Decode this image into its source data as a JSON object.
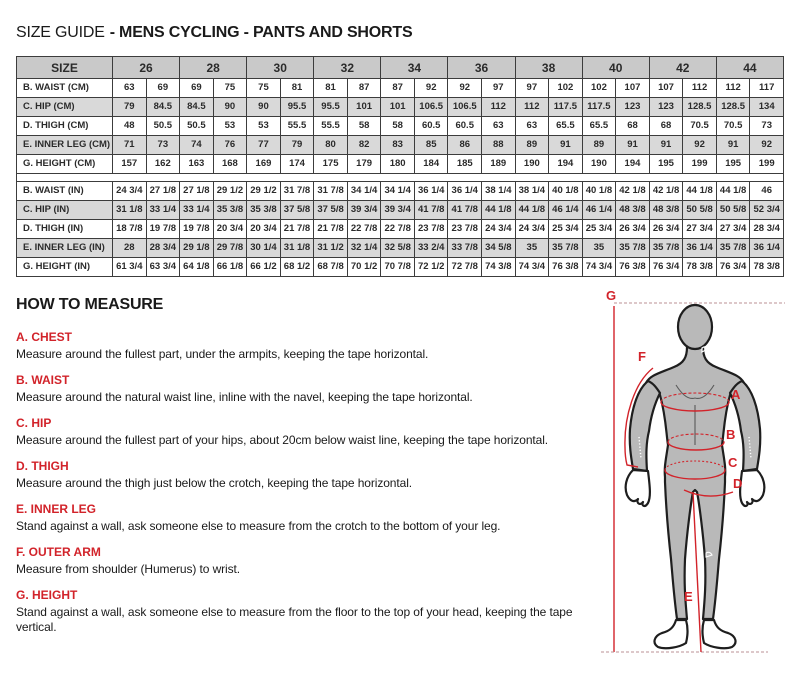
{
  "page": {
    "title_prefix": "SIZE GUIDE",
    "title_rest": "- MENS CYCLING - PANTS AND SHORTS"
  },
  "size_table": {
    "corner_label": "SIZE",
    "sizes": [
      "26",
      "28",
      "30",
      "32",
      "34",
      "36",
      "38",
      "40",
      "42",
      "44"
    ],
    "rows_cm": [
      {
        "label": "B. WAIST (CM)",
        "values": [
          "63",
          "69",
          "69",
          "75",
          "75",
          "81",
          "81",
          "87",
          "87",
          "92",
          "92",
          "97",
          "97",
          "102",
          "102",
          "107",
          "107",
          "112",
          "112",
          "117"
        ]
      },
      {
        "label": "C. HIP (CM)",
        "values": [
          "79",
          "84.5",
          "84.5",
          "90",
          "90",
          "95.5",
          "95.5",
          "101",
          "101",
          "106.5",
          "106.5",
          "112",
          "112",
          "117.5",
          "117.5",
          "123",
          "123",
          "128.5",
          "128.5",
          "134"
        ]
      },
      {
        "label": "D. THIGH (CM)",
        "values": [
          "48",
          "50.5",
          "50.5",
          "53",
          "53",
          "55.5",
          "55.5",
          "58",
          "58",
          "60.5",
          "60.5",
          "63",
          "63",
          "65.5",
          "65.5",
          "68",
          "68",
          "70.5",
          "70.5",
          "73"
        ]
      },
      {
        "label": "E. INNER LEG (CM)",
        "values": [
          "71",
          "73",
          "74",
          "76",
          "77",
          "79",
          "80",
          "82",
          "83",
          "85",
          "86",
          "88",
          "89",
          "91",
          "89",
          "91",
          "91",
          "92",
          "91",
          "92"
        ]
      },
      {
        "label": "G. HEIGHT (CM)",
        "values": [
          "157",
          "162",
          "163",
          "168",
          "169",
          "174",
          "175",
          "179",
          "180",
          "184",
          "185",
          "189",
          "190",
          "194",
          "190",
          "194",
          "195",
          "199",
          "195",
          "199"
        ]
      }
    ],
    "rows_in": [
      {
        "label": "B. WAIST (IN)",
        "values": [
          "24 3/4",
          "27 1/8",
          "27 1/8",
          "29 1/2",
          "29 1/2",
          "31 7/8",
          "31 7/8",
          "34 1/4",
          "34 1/4",
          "36 1/4",
          "36 1/4",
          "38 1/4",
          "38 1/4",
          "40 1/8",
          "40 1/8",
          "42 1/8",
          "42 1/8",
          "44 1/8",
          "44 1/8",
          "46"
        ]
      },
      {
        "label": "C. HIP (IN)",
        "values": [
          "31 1/8",
          "33 1/4",
          "33 1/4",
          "35 3/8",
          "35 3/8",
          "37 5/8",
          "37 5/8",
          "39 3/4",
          "39 3/4",
          "41 7/8",
          "41 7/8",
          "44 1/8",
          "44 1/8",
          "46 1/4",
          "46 1/4",
          "48 3/8",
          "48 3/8",
          "50 5/8",
          "50 5/8",
          "52 3/4"
        ]
      },
      {
        "label": "D. THIGH (IN)",
        "values": [
          "18 7/8",
          "19 7/8",
          "19 7/8",
          "20 3/4",
          "20 3/4",
          "21 7/8",
          "21 7/8",
          "22 7/8",
          "22 7/8",
          "23 7/8",
          "23 7/8",
          "24 3/4",
          "24 3/4",
          "25 3/4",
          "25 3/4",
          "26 3/4",
          "26 3/4",
          "27 3/4",
          "27 3/4",
          "28 3/4"
        ]
      },
      {
        "label": "E. INNER LEG (IN)",
        "values": [
          "28",
          "28 3/4",
          "29 1/8",
          "29 7/8",
          "30 1/4",
          "31 1/8",
          "31 1/2",
          "32 1/4",
          "32 5/8",
          "33 2/4",
          "33 7/8",
          "34 5/8",
          "35",
          "35 7/8",
          "35",
          "35 7/8",
          "35 7/8",
          "36 1/4",
          "35 7/8",
          "36 1/4"
        ]
      },
      {
        "label": "G. HEIGHT (IN)",
        "values": [
          "61 3/4",
          "63 3/4",
          "64 1/8",
          "66 1/8",
          "66 1/2",
          "68 1/2",
          "68 7/8",
          "70 1/2",
          "70 7/8",
          "72 1/2",
          "72 7/8",
          "74 3/8",
          "74 3/4",
          "76 3/8",
          "74 3/4",
          "76 3/8",
          "76 3/4",
          "78 3/8",
          "76 3/4",
          "78 3/8"
        ]
      }
    ]
  },
  "how_to_measure": {
    "heading": "HOW TO MEASURE",
    "sections": [
      {
        "label": "A. CHEST",
        "text": "Measure around the fullest part, under the armpits, keeping the tape horizontal."
      },
      {
        "label": "B. WAIST",
        "text": "Measure around the natural waist line, inline with the navel, keeping the tape horizontal."
      },
      {
        "label": "C. HIP",
        "text": "Measure around the fullest part of your hips, about 20cm below waist line, keeping the tape horizontal."
      },
      {
        "label": "D. THIGH",
        "text": "Measure around the thigh just below the crotch, keeping the tape horizontal."
      },
      {
        "label": "E. INNER LEG",
        "text": "Stand against a wall, ask someone else to measure from the crotch to the bottom of your leg."
      },
      {
        "label": "F. OUTER ARM",
        "text": "Measure from shoulder (Humerus) to wrist."
      },
      {
        "label": "G. HEIGHT",
        "text": "Stand against a wall, ask someone else to measure from the floor to the top of your head, keeping the tape vertical."
      }
    ]
  },
  "diagram": {
    "labels": {
      "g": "G",
      "f": "F",
      "a": "A",
      "b": "B",
      "c": "C",
      "d": "D",
      "e": "E"
    }
  },
  "colors": {
    "accent_red": "#d2232a",
    "header_gray": "#c9c9c9",
    "row_alt_gray": "#d9d9d9",
    "body_gray": "#b9b9b9",
    "table_border": "#3c3c3c"
  }
}
